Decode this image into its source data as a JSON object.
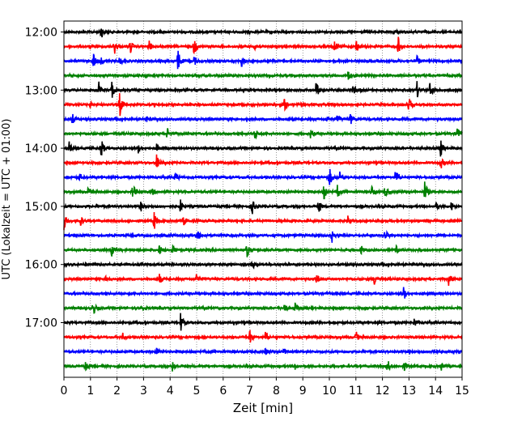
{
  "chart_data": {
    "type": "line",
    "title": "",
    "xlabel": "Zeit  [min]",
    "ylabel": "UTC (Lokalzeit = UTC + 01:00)",
    "xlim": [
      0,
      15
    ],
    "x_ticks": [
      "0",
      "1",
      "2",
      "3",
      "4",
      "5",
      "6",
      "7",
      "8",
      "9",
      "10",
      "11",
      "12",
      "13",
      "14",
      "15"
    ],
    "y_ticks": [
      {
        "label": "12:00",
        "row": 0
      },
      {
        "label": "13:00",
        "row": 4
      },
      {
        "label": "14:00",
        "row": 8
      },
      {
        "label": "15:00",
        "row": 12
      },
      {
        "label": "16:00",
        "row": 16
      },
      {
        "label": "17:00",
        "row": 20
      }
    ],
    "grid": "vertical dotted at each minute",
    "row_colors": [
      "#000000",
      "#ff0000",
      "#0000ff",
      "#008000"
    ],
    "traces": [
      {
        "start": "12:00",
        "color": "#000000",
        "events": [
          [
            1.4,
            1.0
          ],
          [
            12.4,
            0.3
          ]
        ]
      },
      {
        "start": "12:15",
        "color": "#ff0000",
        "events": [
          [
            1.9,
            1.1
          ],
          [
            2.5,
            0.9
          ],
          [
            3.2,
            0.8
          ],
          [
            4.9,
            1.1
          ],
          [
            7.2,
            0.9
          ],
          [
            10.2,
            0.9
          ],
          [
            11.0,
            1.1
          ],
          [
            12.6,
            1.3
          ]
        ]
      },
      {
        "start": "12:30",
        "color": "#0000ff",
        "events": [
          [
            1.1,
            1.3
          ],
          [
            1.4,
            0.6
          ],
          [
            2.1,
            0.6
          ],
          [
            4.3,
            1.7
          ],
          [
            4.9,
            0.7
          ],
          [
            6.7,
            1.0
          ],
          [
            13.3,
            0.7
          ]
        ]
      },
      {
        "start": "12:45",
        "color": "#008000",
        "events": [
          [
            10.7,
            0.8
          ]
        ]
      },
      {
        "start": "13:00",
        "color": "#000000",
        "events": [
          [
            1.3,
            1.3
          ],
          [
            1.8,
            1.3
          ],
          [
            9.5,
            1.3
          ],
          [
            10.9,
            0.7
          ],
          [
            13.3,
            1.1
          ],
          [
            13.8,
            1.1
          ]
        ]
      },
      {
        "start": "13:15",
        "color": "#ff0000",
        "events": [
          [
            1.0,
            0.4
          ],
          [
            2.1,
            1.7
          ],
          [
            8.3,
            0.9
          ],
          [
            13.0,
            0.9
          ]
        ]
      },
      {
        "start": "13:30",
        "color": "#0000ff",
        "events": [
          [
            0.3,
            1.0
          ],
          [
            3.1,
            0.4
          ],
          [
            9.9,
            0.5
          ],
          [
            10.3,
            0.6
          ],
          [
            10.8,
            0.7
          ]
        ]
      },
      {
        "start": "13:45",
        "color": "#008000",
        "events": [
          [
            3.9,
            0.9
          ],
          [
            7.2,
            0.8
          ],
          [
            9.3,
            0.6
          ],
          [
            14.8,
            1.3
          ]
        ]
      },
      {
        "start": "14:00",
        "color": "#000000",
        "events": [
          [
            0.2,
            0.8
          ],
          [
            1.4,
            1.5
          ],
          [
            2.8,
            0.6
          ],
          [
            3.5,
            0.6
          ],
          [
            14.2,
            1.3
          ]
        ]
      },
      {
        "start": "14:15",
        "color": "#ff0000",
        "events": [
          [
            3.5,
            1.3
          ],
          [
            14.2,
            0.8
          ]
        ]
      },
      {
        "start": "14:30",
        "color": "#0000ff",
        "events": [
          [
            0.6,
            0.5
          ],
          [
            4.2,
            0.7
          ],
          [
            10.0,
            1.5
          ],
          [
            10.4,
            1.0
          ],
          [
            12.5,
            1.3
          ]
        ]
      },
      {
        "start": "14:45",
        "color": "#008000",
        "events": [
          [
            0.9,
            0.7
          ],
          [
            2.6,
            1.1
          ],
          [
            3.3,
            0.6
          ],
          [
            9.8,
            1.5
          ],
          [
            10.3,
            1.0
          ],
          [
            11.6,
            0.9
          ],
          [
            12.1,
            0.9
          ],
          [
            13.6,
            1.6
          ]
        ]
      },
      {
        "start": "15:00",
        "color": "#000000",
        "events": [
          [
            2.9,
            0.6
          ],
          [
            4.4,
            1.0
          ],
          [
            7.1,
            1.0
          ],
          [
            9.6,
            1.0
          ],
          [
            14.0,
            0.6
          ],
          [
            14.6,
            0.6
          ]
        ]
      },
      {
        "start": "15:15",
        "color": "#ff0000",
        "events": [
          [
            0.0,
            1.3
          ],
          [
            0.6,
            1.0
          ],
          [
            3.4,
            1.3
          ],
          [
            4.5,
            0.7
          ],
          [
            10.7,
            0.6
          ]
        ]
      },
      {
        "start": "15:30",
        "color": "#0000ff",
        "events": [
          [
            5.0,
            1.3
          ],
          [
            10.1,
            0.9
          ],
          [
            12.1,
            0.9
          ]
        ]
      },
      {
        "start": "15:45",
        "color": "#008000",
        "events": [
          [
            1.8,
            0.8
          ],
          [
            3.6,
            0.7
          ],
          [
            4.1,
            0.7
          ],
          [
            6.9,
            1.1
          ],
          [
            11.2,
            0.6
          ],
          [
            12.5,
            0.6
          ]
        ]
      },
      {
        "start": "16:00",
        "color": "#000000",
        "events": [
          [
            7.1,
            0.6
          ]
        ]
      },
      {
        "start": "16:15",
        "color": "#ff0000",
        "events": [
          [
            1.6,
            0.9
          ],
          [
            3.6,
            0.7
          ],
          [
            5.0,
            0.7
          ],
          [
            9.5,
            0.7
          ],
          [
            11.7,
            1.0
          ],
          [
            14.5,
            0.9
          ]
        ]
      },
      {
        "start": "16:30",
        "color": "#0000ff",
        "events": [
          [
            12.8,
            1.0
          ]
        ]
      },
      {
        "start": "16:45",
        "color": "#008000",
        "events": [
          [
            1.1,
            1.0
          ],
          [
            2.9,
            0.6
          ],
          [
            8.3,
            0.9
          ],
          [
            8.7,
            0.7
          ]
        ]
      },
      {
        "start": "17:00",
        "color": "#000000",
        "events": [
          [
            4.4,
            1.4
          ],
          [
            13.2,
            0.6
          ]
        ]
      },
      {
        "start": "17:15",
        "color": "#ff0000",
        "events": [
          [
            2.2,
            0.6
          ],
          [
            7.0,
            1.0
          ],
          [
            7.6,
            0.8
          ],
          [
            11.0,
            0.8
          ]
        ]
      },
      {
        "start": "17:30",
        "color": "#0000ff",
        "events": [
          [
            3.5,
            0.5
          ],
          [
            7.6,
            0.5
          ],
          [
            8.3,
            0.7
          ],
          [
            13.9,
            0.7
          ]
        ]
      },
      {
        "start": "17:45",
        "color": "#008000",
        "events": [
          [
            0.8,
            0.7
          ],
          [
            4.1,
            0.8
          ],
          [
            8.7,
            0.6
          ],
          [
            12.2,
            0.9
          ],
          [
            12.8,
            0.7
          ],
          [
            14.2,
            0.7
          ]
        ]
      }
    ]
  }
}
